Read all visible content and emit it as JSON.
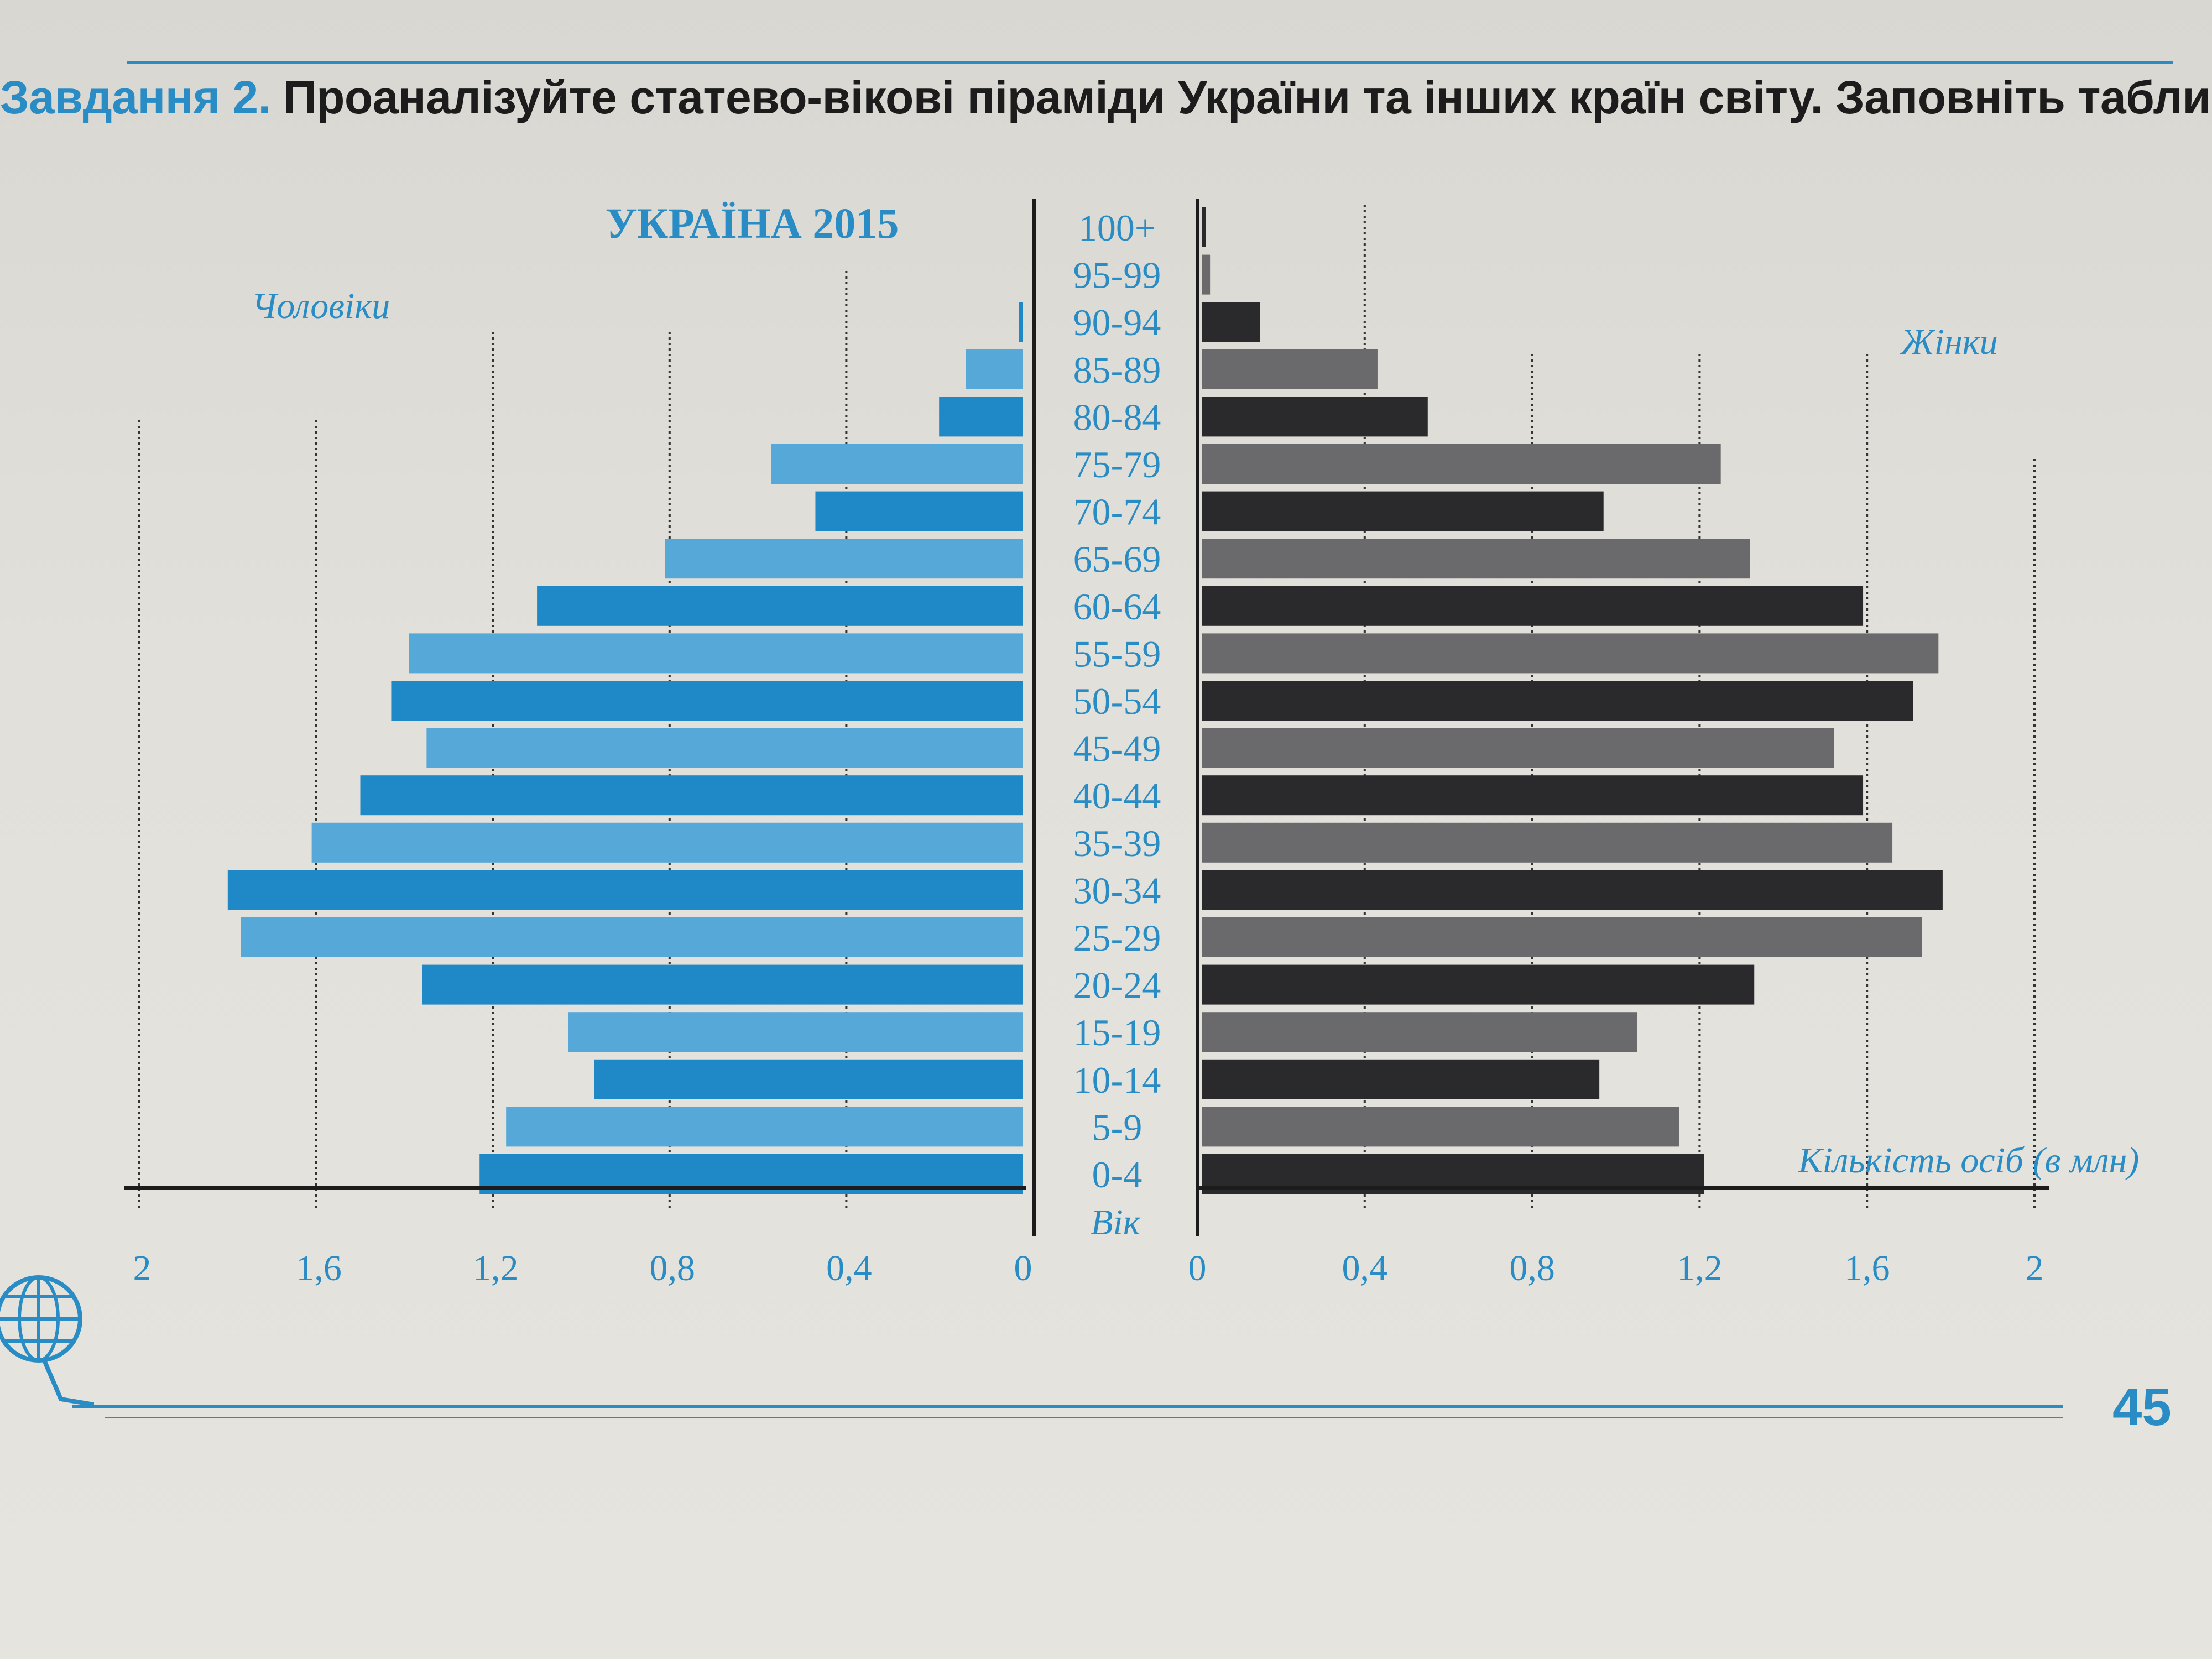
{
  "task": {
    "number": "Завдання 2.",
    "text": "Проаналізуйте статево-вікові піраміди України та інших країн світу. Заповніть таблицю."
  },
  "page_number": "45",
  "colors": {
    "accent": "#2a8cc4",
    "male_dark": "#1f88c6",
    "male_light": "#55a8d8",
    "female_dark": "#2a2a2c",
    "female_light": "#6a6a6c"
  },
  "chart_data": {
    "type": "bar",
    "title": "УКРАЇНА 2015",
    "left_label": "Чоловіки",
    "right_label": "Жінки",
    "center_axis_label": "Вік",
    "value_axis_label": "Кількість осіб (в млн)",
    "ticks": [
      2,
      1.6,
      1.2,
      0.8,
      0.4,
      0
    ],
    "tick_labels": [
      "2",
      "1,6",
      "1,2",
      "0,8",
      "0,4",
      "0"
    ],
    "xlim": [
      0,
      2
    ],
    "grid": true,
    "categories": [
      "100+",
      "95-99",
      "90-94",
      "85-89",
      "80-84",
      "75-79",
      "70-74",
      "65-69",
      "60-64",
      "55-59",
      "50-54",
      "45-49",
      "40-44",
      "35-39",
      "30-34",
      "25-29",
      "20-24",
      "15-19",
      "10-14",
      "5-9",
      "0-4"
    ],
    "series": [
      {
        "name": "Чоловіки",
        "values": [
          0,
          0,
          0.01,
          0.13,
          0.19,
          0.57,
          0.47,
          0.81,
          1.1,
          1.39,
          1.43,
          1.35,
          1.5,
          1.61,
          1.8,
          1.77,
          1.36,
          1.03,
          0.97,
          1.17,
          1.23
        ]
      },
      {
        "name": "Жінки",
        "values": [
          0.01,
          0.02,
          0.14,
          0.42,
          0.54,
          1.24,
          0.96,
          1.31,
          1.58,
          1.76,
          1.7,
          1.51,
          1.58,
          1.65,
          1.77,
          1.72,
          1.32,
          1.04,
          0.95,
          1.14,
          1.2
        ]
      }
    ]
  }
}
